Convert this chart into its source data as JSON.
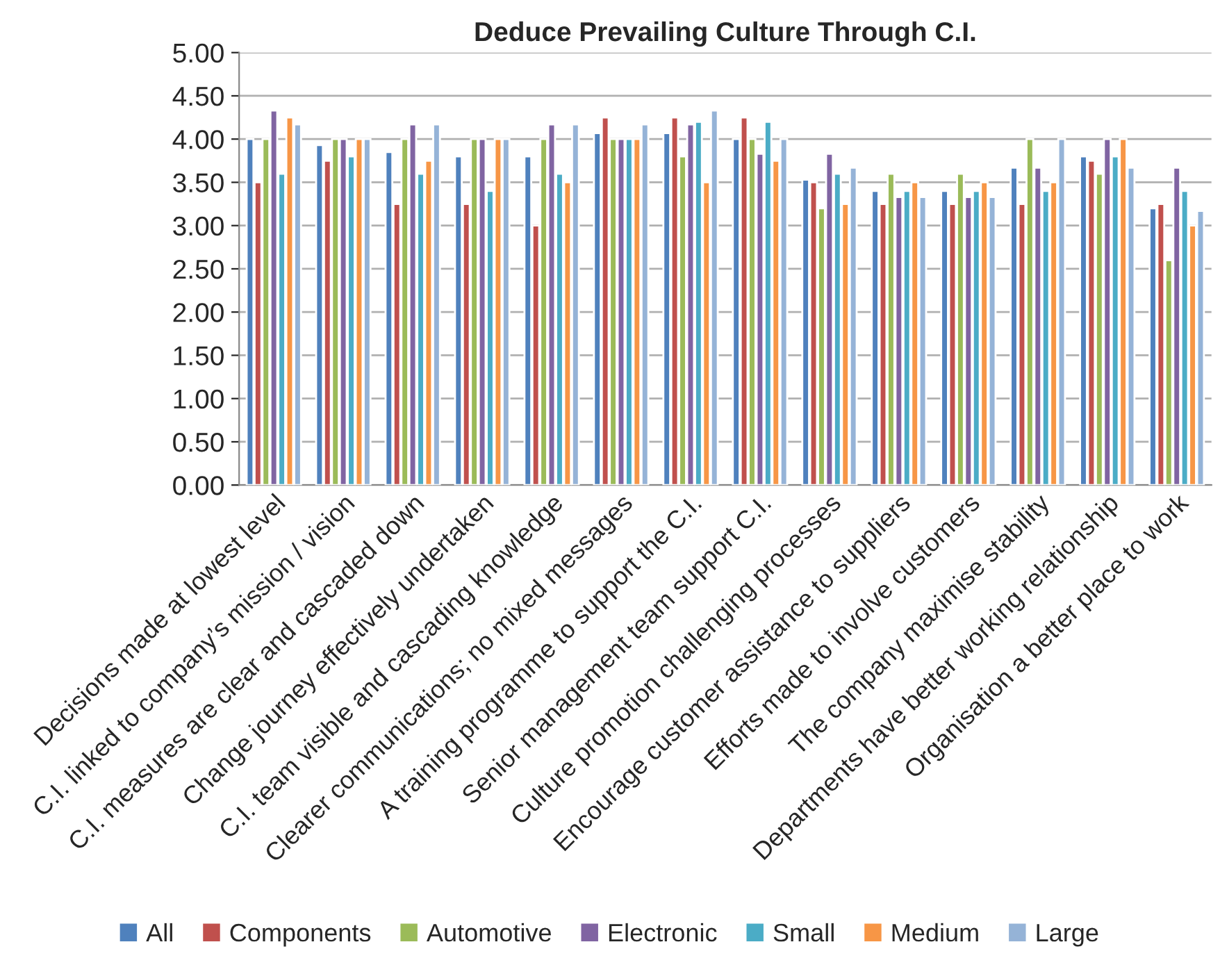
{
  "chart_data": {
    "type": "bar",
    "title": "Deduce Prevailing Culture Through C.I.",
    "categories": [
      "Decisions made at lowest level",
      "C.I. linked to company’s mission / vision",
      "C.I. measures are clear and cascaded down",
      "Change journey effectively undertaken",
      "C.I. team visible and cascading knowledge",
      "Clearer communications; no mixed messages",
      "A training programme to support the C.I.",
      "Senior management team support C.I.",
      "Culture promotion challenging processes",
      "Encourage customer assistance to suppliers",
      "Efforts made to involve customers",
      "The company maximise stability",
      "Departments have better working relationship",
      "Organisation a better place to work"
    ],
    "series": [
      {
        "name": "All",
        "color": "#4f81bd",
        "values": [
          4.0,
          3.93,
          3.85,
          3.8,
          3.8,
          4.07,
          4.07,
          4.0,
          3.53,
          3.4,
          3.4,
          3.67,
          3.8,
          3.2
        ]
      },
      {
        "name": "Components",
        "color": "#c0504d",
        "values": [
          3.5,
          3.75,
          3.25,
          3.25,
          3.0,
          4.25,
          4.25,
          4.25,
          3.5,
          3.25,
          3.25,
          3.25,
          3.75,
          3.25
        ]
      },
      {
        "name": "Automotive",
        "color": "#9bbb59",
        "values": [
          4.0,
          4.0,
          4.0,
          4.0,
          4.0,
          4.0,
          3.8,
          4.0,
          3.2,
          3.6,
          3.6,
          4.0,
          3.6,
          2.6
        ]
      },
      {
        "name": "Electronic",
        "color": "#8064a2",
        "values": [
          4.33,
          4.0,
          4.17,
          4.0,
          4.17,
          4.0,
          4.17,
          3.83,
          3.83,
          3.33,
          3.33,
          3.67,
          4.0,
          3.67
        ]
      },
      {
        "name": "Small",
        "color": "#4bacc6",
        "values": [
          3.6,
          3.8,
          3.6,
          3.4,
          3.6,
          4.0,
          4.2,
          4.2,
          3.6,
          3.4,
          3.4,
          3.4,
          3.8,
          3.4
        ]
      },
      {
        "name": "Medium",
        "color": "#f79646",
        "values": [
          4.25,
          4.0,
          3.75,
          4.0,
          3.5,
          4.0,
          3.5,
          3.75,
          3.25,
          3.5,
          3.5,
          3.5,
          4.0,
          3.0
        ]
      },
      {
        "name": "Large",
        "color": "#95b3d7",
        "values": [
          4.17,
          4.0,
          4.17,
          4.0,
          4.17,
          4.17,
          4.33,
          4.0,
          3.67,
          3.33,
          3.33,
          4.0,
          3.67,
          3.17
        ]
      }
    ],
    "ylim": [
      0,
      5
    ],
    "yticks": [
      {
        "value": 0,
        "label": "0.00"
      },
      {
        "value": 0.5,
        "label": "0.50"
      },
      {
        "value": 1,
        "label": "1.00"
      },
      {
        "value": 1.5,
        "label": "1.50"
      },
      {
        "value": 2,
        "label": "2.00"
      },
      {
        "value": 2.5,
        "label": "2.50"
      },
      {
        "value": 3,
        "label": "3.00"
      },
      {
        "value": 3.5,
        "label": "3.50"
      },
      {
        "value": 4,
        "label": "4.00"
      },
      {
        "value": 4.5,
        "label": "4.50"
      },
      {
        "value": 5,
        "label": "5.00"
      }
    ],
    "grid": "y",
    "legend": "bottom"
  }
}
